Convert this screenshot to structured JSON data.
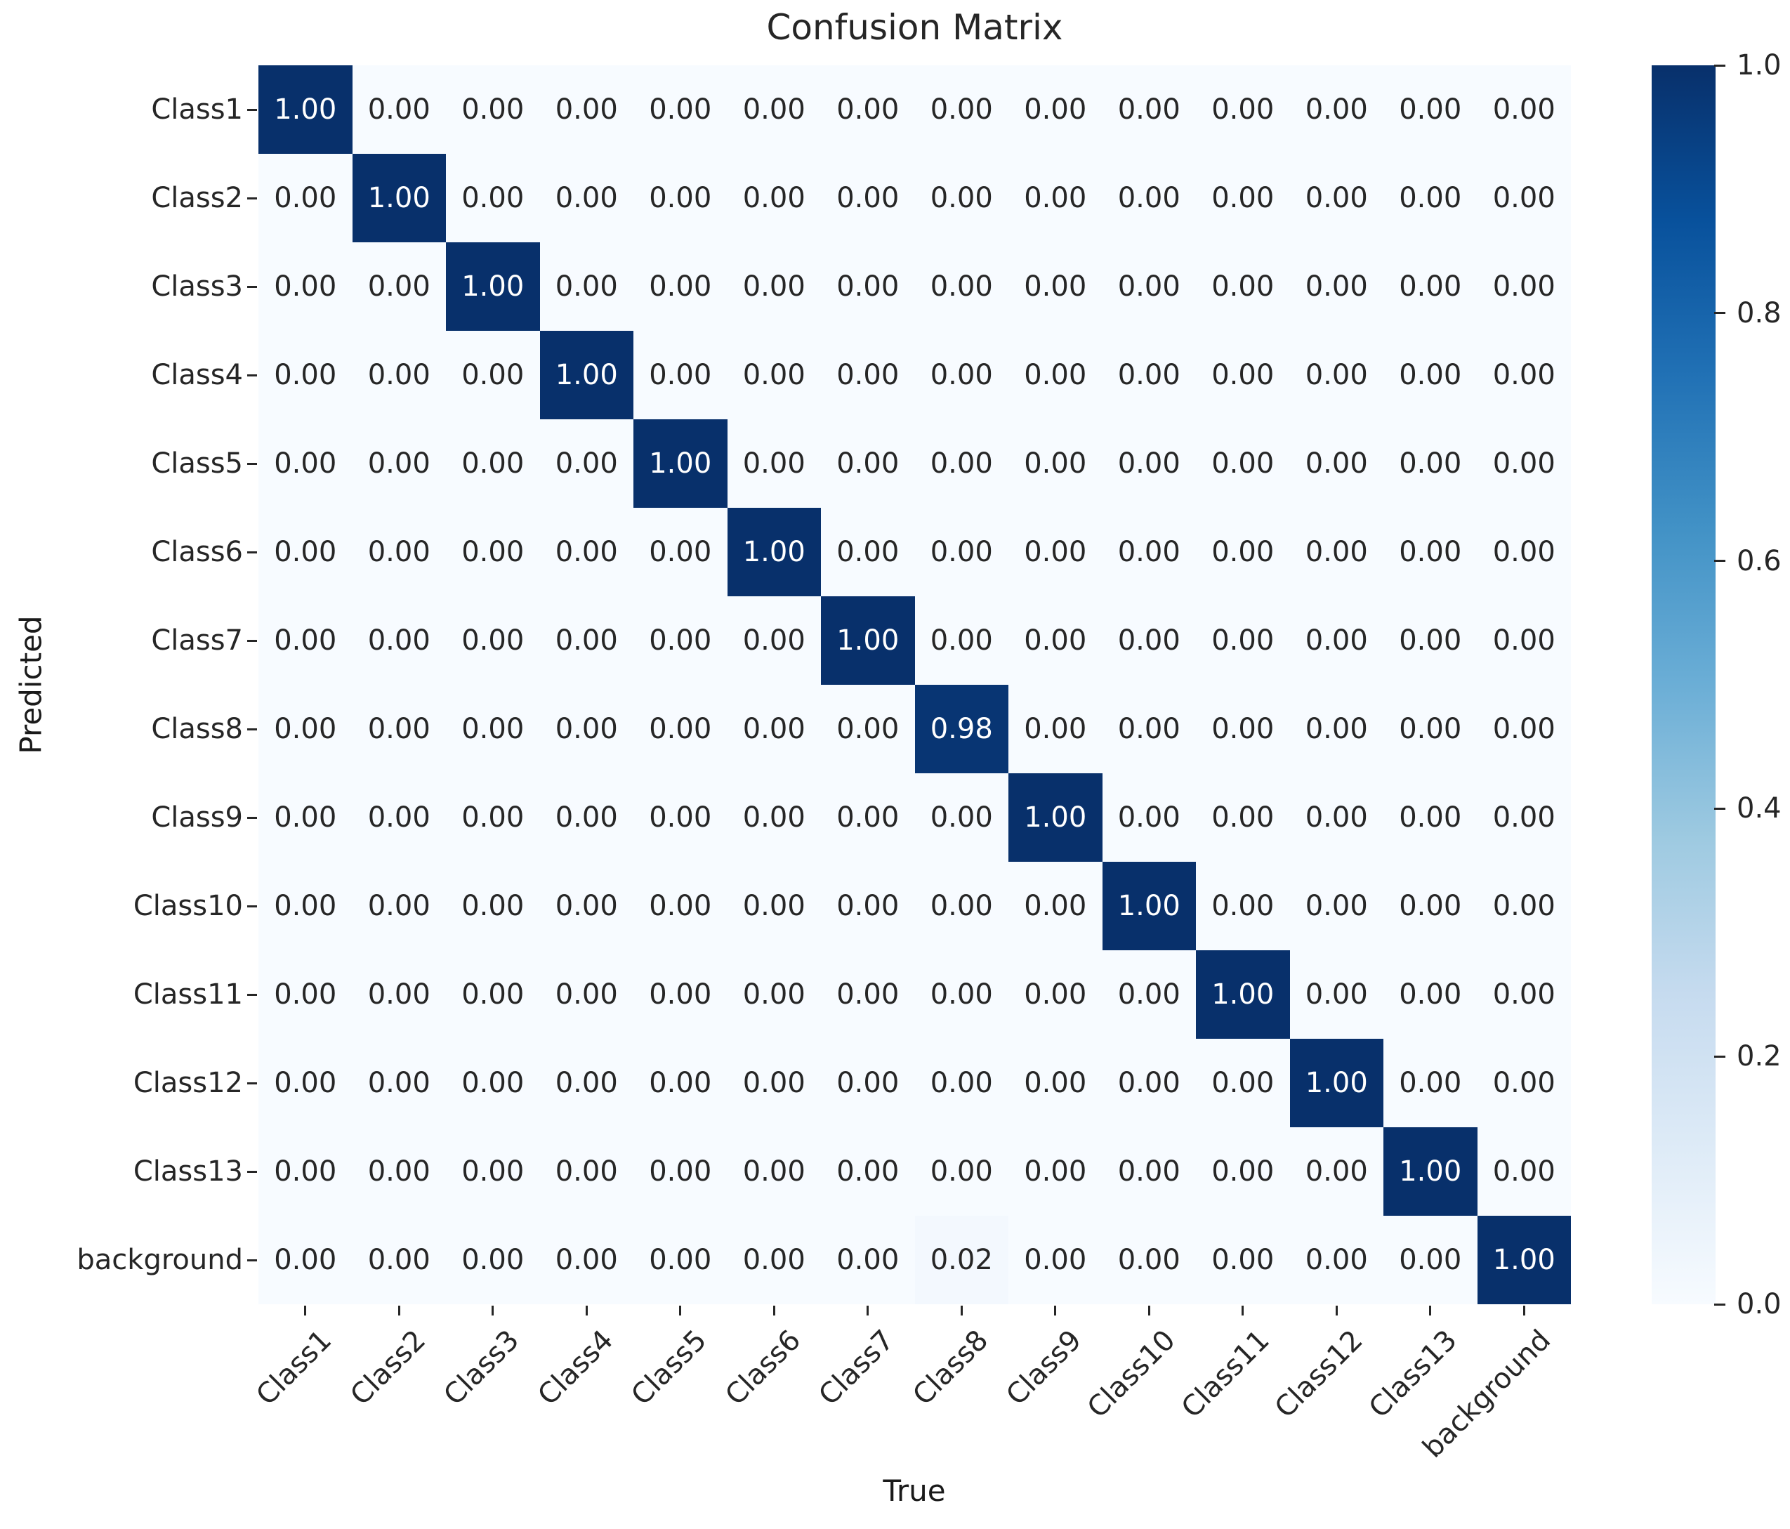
{
  "figure": {
    "colors": {
      "background": "#ffffff",
      "tick_color": "#262626",
      "annotation_dark_text": "#262626",
      "annotation_light_text": "#ffffff"
    }
  },
  "chart_data": {
    "type": "heatmap",
    "title": "Confusion Matrix",
    "xlabel": "True",
    "ylabel": "Predicted",
    "x_categories": [
      "Class1",
      "Class2",
      "Class3",
      "Class4",
      "Class5",
      "Class6",
      "Class7",
      "Class8",
      "Class9",
      "Class10",
      "Class11",
      "Class12",
      "Class13",
      "background"
    ],
    "y_categories": [
      "Class1",
      "Class2",
      "Class3",
      "Class4",
      "Class5",
      "Class6",
      "Class7",
      "Class8",
      "Class9",
      "Class10",
      "Class11",
      "Class12",
      "Class13",
      "background"
    ],
    "values": [
      [
        1.0,
        0.0,
        0.0,
        0.0,
        0.0,
        0.0,
        0.0,
        0.0,
        0.0,
        0.0,
        0.0,
        0.0,
        0.0,
        0.0
      ],
      [
        0.0,
        1.0,
        0.0,
        0.0,
        0.0,
        0.0,
        0.0,
        0.0,
        0.0,
        0.0,
        0.0,
        0.0,
        0.0,
        0.0
      ],
      [
        0.0,
        0.0,
        1.0,
        0.0,
        0.0,
        0.0,
        0.0,
        0.0,
        0.0,
        0.0,
        0.0,
        0.0,
        0.0,
        0.0
      ],
      [
        0.0,
        0.0,
        0.0,
        1.0,
        0.0,
        0.0,
        0.0,
        0.0,
        0.0,
        0.0,
        0.0,
        0.0,
        0.0,
        0.0
      ],
      [
        0.0,
        0.0,
        0.0,
        0.0,
        1.0,
        0.0,
        0.0,
        0.0,
        0.0,
        0.0,
        0.0,
        0.0,
        0.0,
        0.0
      ],
      [
        0.0,
        0.0,
        0.0,
        0.0,
        0.0,
        1.0,
        0.0,
        0.0,
        0.0,
        0.0,
        0.0,
        0.0,
        0.0,
        0.0
      ],
      [
        0.0,
        0.0,
        0.0,
        0.0,
        0.0,
        0.0,
        1.0,
        0.0,
        0.0,
        0.0,
        0.0,
        0.0,
        0.0,
        0.0
      ],
      [
        0.0,
        0.0,
        0.0,
        0.0,
        0.0,
        0.0,
        0.0,
        0.98,
        0.0,
        0.0,
        0.0,
        0.0,
        0.0,
        0.0
      ],
      [
        0.0,
        0.0,
        0.0,
        0.0,
        0.0,
        0.0,
        0.0,
        0.0,
        1.0,
        0.0,
        0.0,
        0.0,
        0.0,
        0.0
      ],
      [
        0.0,
        0.0,
        0.0,
        0.0,
        0.0,
        0.0,
        0.0,
        0.0,
        0.0,
        1.0,
        0.0,
        0.0,
        0.0,
        0.0
      ],
      [
        0.0,
        0.0,
        0.0,
        0.0,
        0.0,
        0.0,
        0.0,
        0.0,
        0.0,
        0.0,
        1.0,
        0.0,
        0.0,
        0.0
      ],
      [
        0.0,
        0.0,
        0.0,
        0.0,
        0.0,
        0.0,
        0.0,
        0.0,
        0.0,
        0.0,
        0.0,
        1.0,
        0.0,
        0.0
      ],
      [
        0.0,
        0.0,
        0.0,
        0.0,
        0.0,
        0.0,
        0.0,
        0.0,
        0.0,
        0.0,
        0.0,
        0.0,
        1.0,
        0.0
      ],
      [
        0.0,
        0.0,
        0.0,
        0.0,
        0.0,
        0.0,
        0.0,
        0.02,
        0.0,
        0.0,
        0.0,
        0.0,
        0.0,
        1.0
      ]
    ],
    "value_decimals": 2,
    "vmin": 0.0,
    "vmax": 1.0,
    "grid": false,
    "legend_position": "colorbar-right",
    "colormap": {
      "name": "Blues",
      "anchors": [
        {
          "pos": 0.0,
          "hex": "#f7fbff"
        },
        {
          "pos": 0.125,
          "hex": "#deebf7"
        },
        {
          "pos": 0.25,
          "hex": "#c6dbef"
        },
        {
          "pos": 0.375,
          "hex": "#9ecae1"
        },
        {
          "pos": 0.5,
          "hex": "#6baed6"
        },
        {
          "pos": 0.625,
          "hex": "#4292c6"
        },
        {
          "pos": 0.75,
          "hex": "#2171b5"
        },
        {
          "pos": 0.875,
          "hex": "#08519c"
        },
        {
          "pos": 1.0,
          "hex": "#08306b"
        }
      ]
    },
    "colorbar": {
      "tick_values": [
        1.0,
        0.8,
        0.6,
        0.4,
        0.2,
        0.0
      ],
      "tick_labels": [
        "1.0",
        "0.8",
        "0.6",
        "0.4",
        "0.2",
        "0.0"
      ],
      "tick_decimals": 1
    }
  }
}
